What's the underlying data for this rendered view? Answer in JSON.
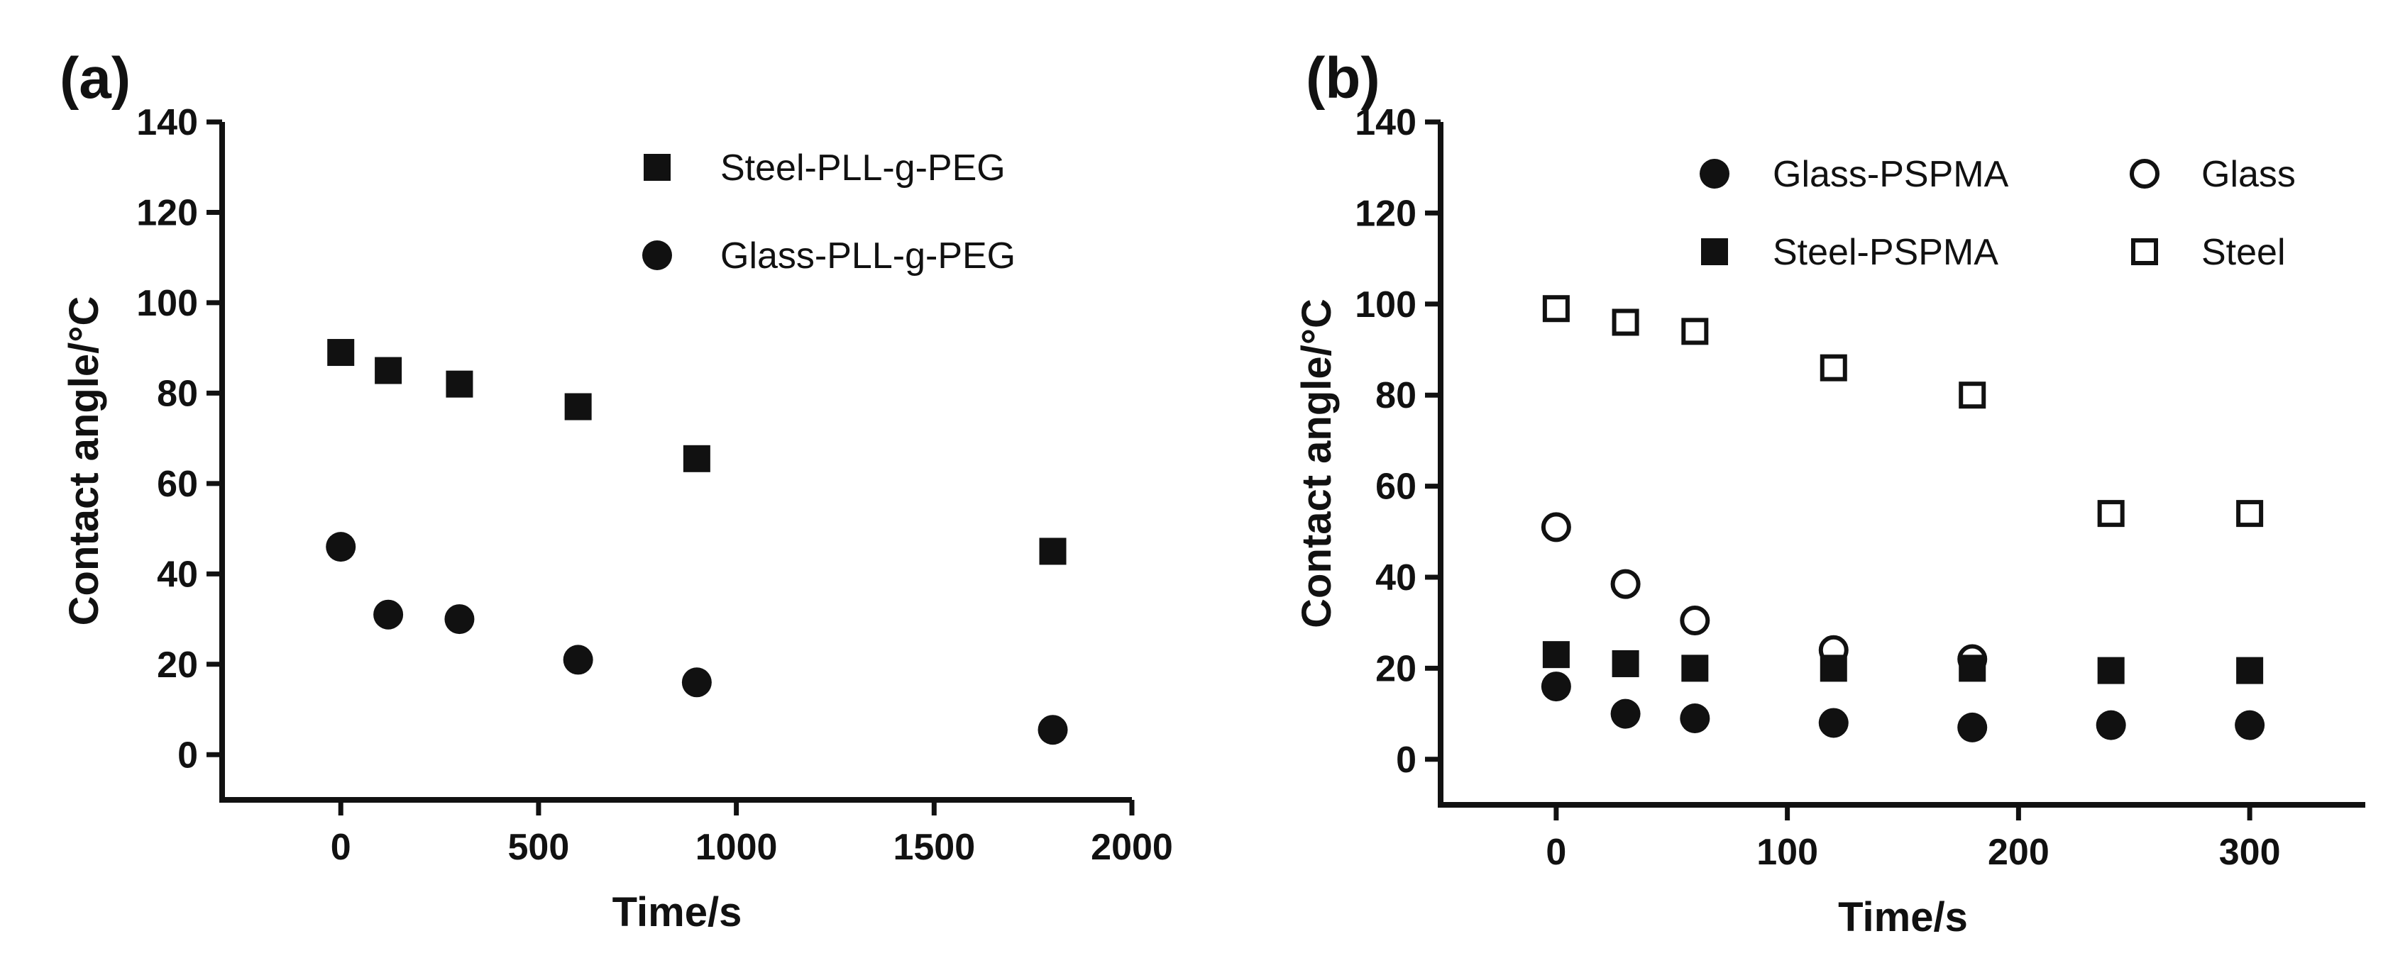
{
  "chart_data": [
    {
      "type": "scatter",
      "panel_label": "(a)",
      "xlabel": "Time/s",
      "ylabel": "Contact angle/°C",
      "xlim": [
        -300,
        2000
      ],
      "ylim": [
        -10,
        140
      ],
      "xticks": [
        0,
        500,
        1000,
        1500,
        2000
      ],
      "xtick_labels": [
        "0",
        "500",
        "1000",
        "1500",
        "2000"
      ],
      "yticks": [
        0,
        20,
        40,
        60,
        80,
        100,
        120,
        140
      ],
      "ytick_labels": [
        "0",
        "20",
        "40",
        "60",
        "80",
        "100",
        "120",
        "140"
      ],
      "legend_position": "top-right",
      "series": [
        {
          "name": "Steel-PLL-g-PEG",
          "marker": "square-filled",
          "x": [
            0,
            120,
            300,
            600,
            900,
            1800
          ],
          "y": [
            89,
            85,
            82,
            77,
            65.5,
            45
          ]
        },
        {
          "name": "Glass-PLL-g-PEG",
          "marker": "circle-filled",
          "x": [
            0,
            120,
            300,
            600,
            900,
            1800
          ],
          "y": [
            46,
            31,
            30,
            21,
            16,
            5.5
          ]
        }
      ]
    },
    {
      "type": "scatter",
      "panel_label": "(b)",
      "xlabel": "Time/s",
      "ylabel": "Contact angle/°C",
      "xlim": [
        -50,
        350
      ],
      "ylim": [
        -10,
        140
      ],
      "xticks": [
        0,
        100,
        200,
        300
      ],
      "xtick_labels": [
        "0",
        "100",
        "200",
        "300"
      ],
      "yticks": [
        0,
        20,
        40,
        60,
        80,
        100,
        120,
        140
      ],
      "ytick_labels": [
        "0",
        "20",
        "40",
        "60",
        "80",
        "100",
        "120",
        "140"
      ],
      "legend_position": "top-right",
      "series": [
        {
          "name": "Glass-PSPMA",
          "marker": "circle-filled",
          "x": [
            0,
            30,
            60,
            120,
            180,
            240,
            300
          ],
          "y": [
            16,
            10,
            9,
            8,
            7,
            7.5,
            7.5
          ]
        },
        {
          "name": "Glass",
          "marker": "circle-open",
          "x": [
            0,
            30,
            60,
            120,
            180
          ],
          "y": [
            51,
            38.5,
            30.5,
            24,
            22
          ]
        },
        {
          "name": "Steel-PSPMA",
          "marker": "square-filled",
          "x": [
            0,
            30,
            60,
            120,
            180,
            240,
            300
          ],
          "y": [
            23,
            21,
            20,
            20,
            20,
            19.5,
            19.5
          ]
        },
        {
          "name": "Steel",
          "marker": "square-open",
          "x": [
            0,
            30,
            60,
            120,
            180,
            240,
            300
          ],
          "y": [
            99,
            96,
            94,
            86,
            80,
            54,
            54
          ]
        }
      ]
    }
  ]
}
